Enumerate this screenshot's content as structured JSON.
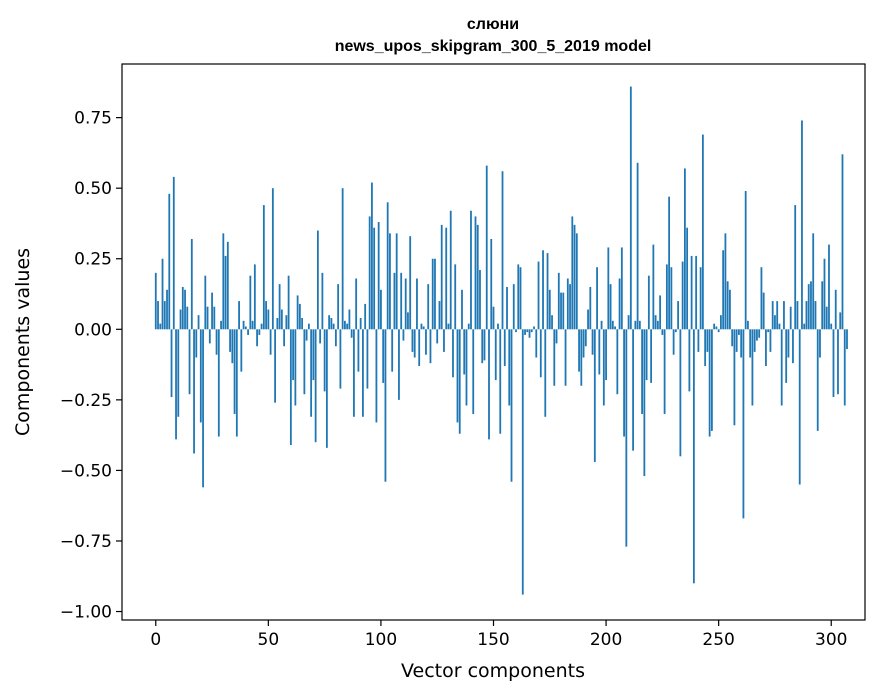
{
  "chart_data": {
    "type": "bar",
    "title_line1": "слюни",
    "title_line2": "news_upos_skipgram_300_5_2019 model",
    "xlabel": "Vector components",
    "ylabel": "Components values",
    "xlim": [
      -15,
      315
    ],
    "ylim": [
      -1.03,
      0.94
    ],
    "xticks": [
      0,
      50,
      100,
      150,
      200,
      250,
      300
    ],
    "xtick_labels": [
      "0",
      "50",
      "100",
      "150",
      "200",
      "250",
      "300"
    ],
    "yticks": [
      -1.0,
      -0.75,
      -0.5,
      -0.25,
      0.0,
      0.25,
      0.5,
      0.75
    ],
    "ytick_labels": [
      "−1.00",
      "−0.75",
      "−0.50",
      "−0.25",
      "0.00",
      "0.25",
      "0.50",
      "0.75"
    ],
    "bar_color": "#1f77b4",
    "values": [
      0.2,
      0.1,
      0.02,
      0.25,
      0.1,
      0.14,
      0.48,
      -0.24,
      0.54,
      -0.39,
      -0.31,
      0.07,
      0.15,
      0.14,
      0.08,
      -0.23,
      0.32,
      -0.44,
      -0.1,
      0.05,
      -0.33,
      -0.56,
      0.19,
      0.08,
      -0.05,
      0.13,
      0.08,
      -0.09,
      -0.38,
      0.03,
      0.34,
      0.26,
      0.31,
      -0.08,
      -0.12,
      -0.3,
      -0.38,
      0.1,
      -0.15,
      0.03,
      0.01,
      -0.02,
      0.19,
      0.03,
      0.23,
      -0.06,
      -0.02,
      0.02,
      0.44,
      0.1,
      0.07,
      -0.09,
      0.5,
      -0.26,
      0.04,
      0.16,
      0.07,
      -0.06,
      0.05,
      0.19,
      -0.41,
      -0.18,
      -0.27,
      0.12,
      0.09,
      0.04,
      -0.23,
      -0.04,
      0.02,
      -0.31,
      -0.18,
      -0.4,
      0.35,
      -0.05,
      0.2,
      -0.22,
      -0.42,
      0.05,
      0.04,
      0.02,
      -0.06,
      0.16,
      -0.21,
      0.5,
      0.03,
      0.02,
      0.07,
      -0.03,
      -0.31,
      0.18,
      -0.15,
      0.04,
      -0.31,
      0.09,
      -0.21,
      0.4,
      0.52,
      0.36,
      -0.33,
      0.38,
      0.14,
      -0.19,
      -0.54,
      0.45,
      0.34,
      -0.15,
      0.2,
      0.34,
      -0.25,
      0.2,
      -0.04,
      0.18,
      0.06,
      0.33,
      -0.08,
      -0.1,
      0.18,
      -0.13,
      0.02,
      0.01,
      -0.09,
      0.16,
      -0.12,
      0.25,
      0.25,
      -0.05,
      0.1,
      0.37,
      -0.08,
      0.36,
      0.02,
      0.42,
      -0.17,
      0.23,
      -0.33,
      -0.37,
      0.14,
      -0.16,
      -0.27,
      0.02,
      0.42,
      -0.3,
      0.4,
      0.37,
      0.21,
      -0.12,
      -0.11,
      0.58,
      -0.39,
      0.32,
      0.08,
      -0.18,
      0.02,
      -0.37,
      0.56,
      -0.13,
      0.15,
      -0.27,
      -0.54,
      0.16,
      -0.01,
      0.23,
      0.22,
      -0.94,
      -0.02,
      -0.01,
      -0.03,
      -0.01,
      0.01,
      -0.1,
      0.24,
      -0.17,
      0.28,
      -0.31,
      0.27,
      0.14,
      0.05,
      -0.2,
      -0.05,
      0.2,
      0.13,
      0.13,
      -0.2,
      0.18,
      0.16,
      0.4,
      0.37,
      0.34,
      -0.15,
      -0.2,
      -0.1,
      -0.06,
      0.07,
      0.15,
      -0.09,
      -0.47,
      0.22,
      -0.16,
      0.03,
      -0.27,
      -0.18,
      0.29,
      0.16,
      0.03,
      0.01,
      -0.23,
      0.18,
      0.29,
      -0.38,
      -0.77,
      0.05,
      0.86,
      -0.43,
      0.03,
      0.59,
      0.03,
      -0.3,
      -0.52,
      -0.18,
      0.19,
      -0.19,
      0.3,
      0.05,
      0.03,
      0.12,
      -0.02,
      -0.3,
      0.23,
      0.47,
      0.22,
      -0.09,
      -0.01,
      0.1,
      -0.45,
      0.24,
      0.57,
      0.36,
      -0.22,
      0.26,
      -0.9,
      0.26,
      -0.08,
      0.22,
      0.69,
      -0.13,
      -0.08,
      -0.38,
      -0.36,
      0.02,
      0.01,
      -0.01,
      0.05,
      0.28,
      0.34,
      0.17,
      0.14,
      -0.06,
      -0.34,
      -0.08,
      -0.02,
      -0.1,
      -0.67,
      0.49,
      0.03,
      -0.1,
      -0.27,
      -0.08,
      -0.04,
      -0.03,
      0.22,
      0.13,
      -0.13,
      -0.01,
      -0.08,
      0.1,
      0.05,
      0.1,
      0.02,
      -0.27,
      0.1,
      -0.19,
      -0.1,
      0.08,
      -0.12,
      0.44,
      0.1,
      -0.55,
      0.74,
      0.02,
      0.1,
      0.16,
      0.17,
      0.34,
      0.1,
      -0.36,
      -0.1,
      0.17,
      0.25,
      0.08,
      0.3,
      0.02,
      -0.24,
      0.14,
      -0.23,
      0.06,
      0.62,
      -0.27,
      -0.07
    ]
  }
}
